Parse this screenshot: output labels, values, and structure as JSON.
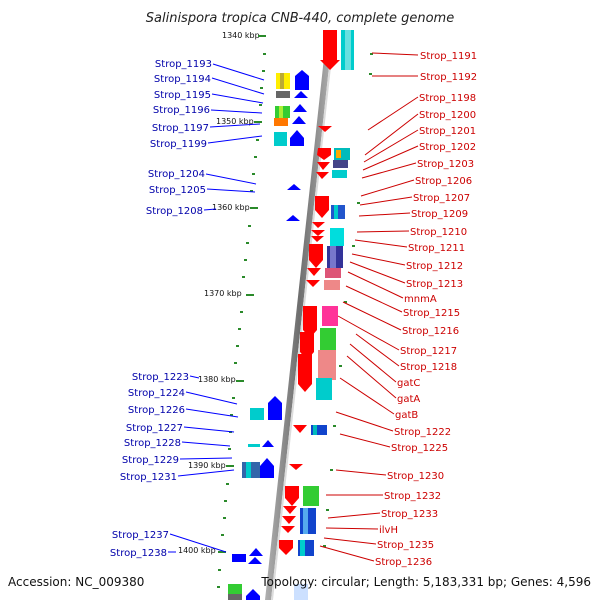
{
  "title": "Salinispora tropica CNB-440, complete genome",
  "footer": {
    "accession": "Accession: NC_009380",
    "summary": "Topology: circular; Length: 5,183,331 bp; Genes: 4,596"
  },
  "ruler_labels": [
    "1340 kbp",
    "1350 kbp",
    "1360 kbp",
    "1370 kbp",
    "1380 kbp",
    "1390 kbp",
    "1400 kbp"
  ],
  "left_genes": [
    "Strop_1193",
    "Strop_1194",
    "Strop_1195",
    "Strop_1196",
    "Strop_1197",
    "Strop_1199",
    "Strop_1204",
    "Strop_1205",
    "Strop_1208",
    "Strop_1223",
    "Strop_1224",
    "Strop_1226",
    "Strop_1227",
    "Strop_1228",
    "Strop_1229",
    "Strop_1231",
    "Strop_1237",
    "Strop_1238"
  ],
  "right_genes": [
    "Strop_1191",
    "Strop_1192",
    "Strop_1198",
    "Strop_1200",
    "Strop_1201",
    "Strop_1202",
    "Strop_1203",
    "Strop_1206",
    "Strop_1207",
    "Strop_1209",
    "Strop_1210",
    "Strop_1211",
    "Strop_1212",
    "Strop_1213",
    "mnmA",
    "Strop_1215",
    "Strop_1216",
    "Strop_1217",
    "Strop_1218",
    "gatC",
    "gatA",
    "gatB",
    "Strop_1222",
    "Strop_1225",
    "Strop_1230",
    "Strop_1232",
    "Strop_1233",
    "ilvH",
    "Strop_1235",
    "Strop_1236"
  ],
  "colors": {
    "forward_strand": "#ff0000",
    "reverse_strand": "#0000ff",
    "backbone": "#888888",
    "tick": "#2a8a2a",
    "left_label": "#0000aa",
    "right_label": "#cc0000"
  }
}
